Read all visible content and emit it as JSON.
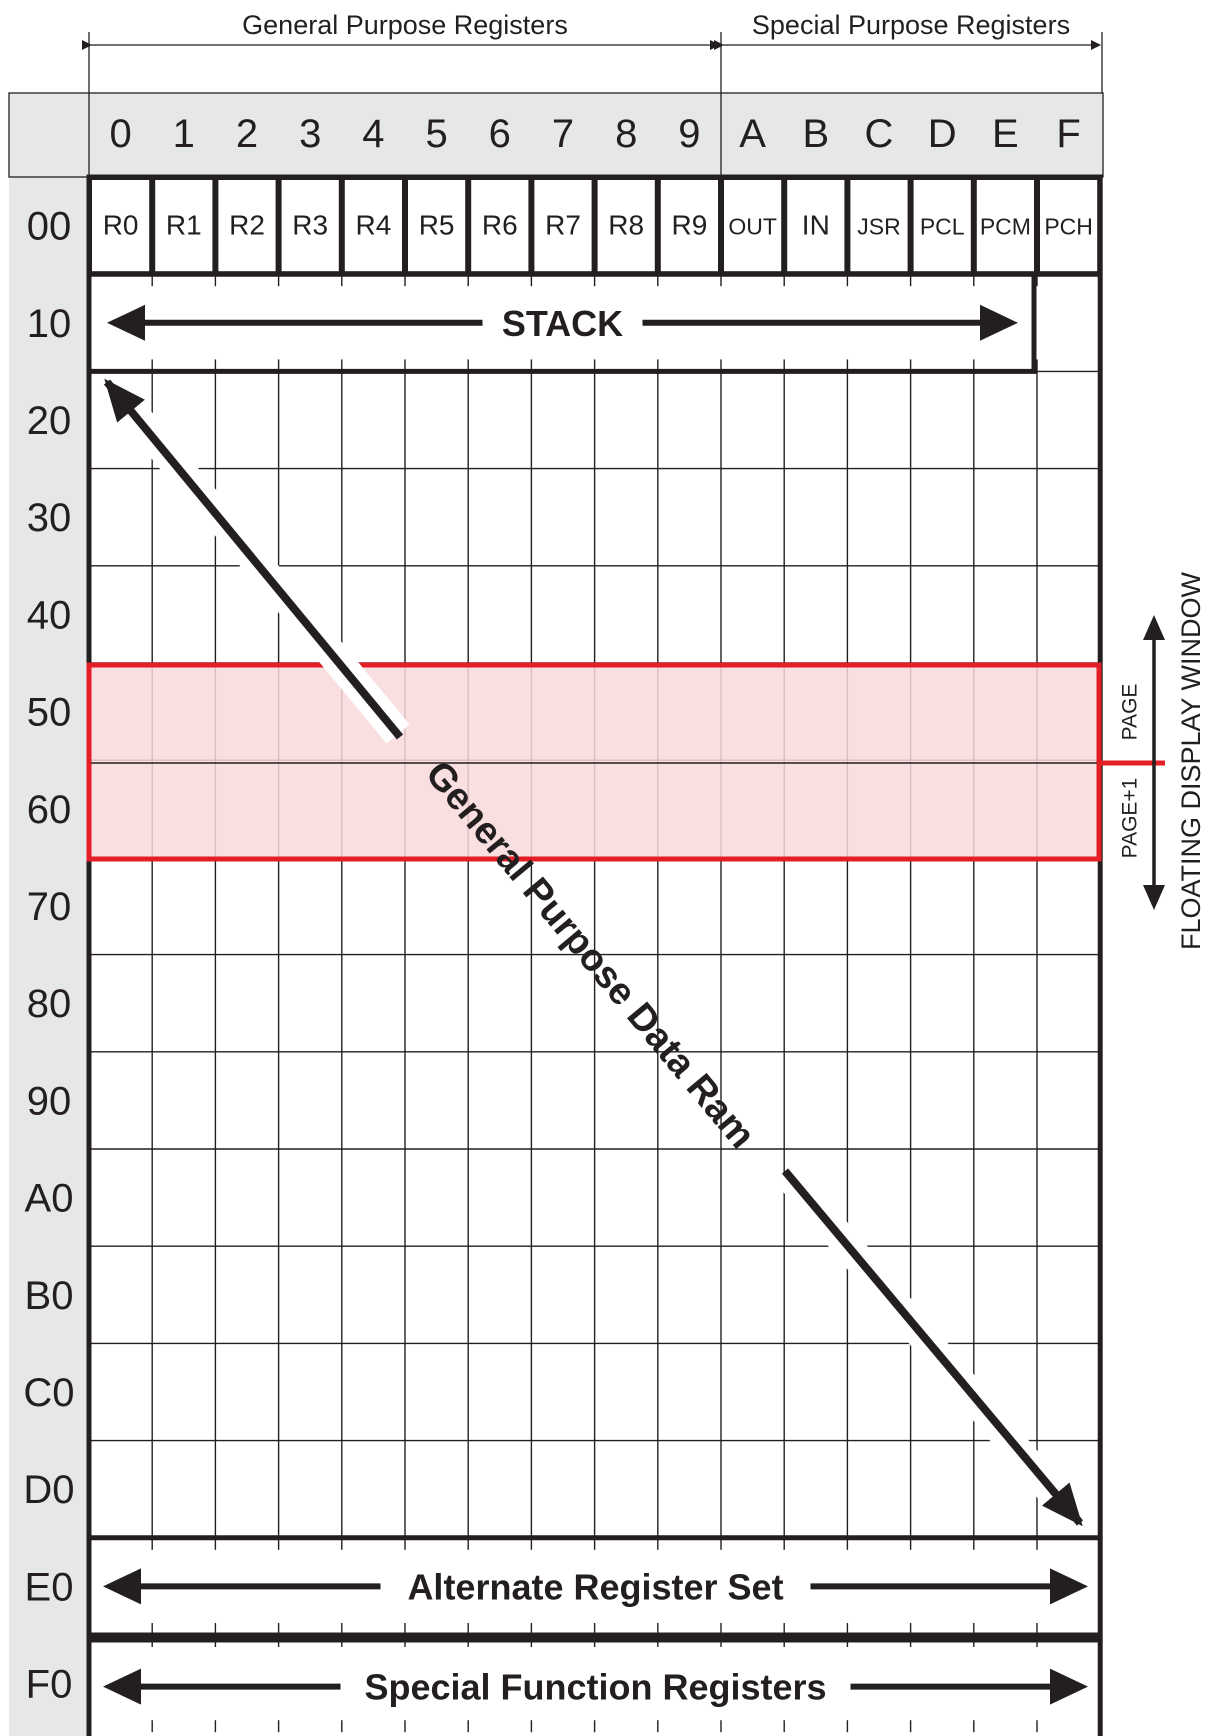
{
  "header": {
    "general_label": "General Purpose Registers",
    "special_label": "Special Purpose Registers"
  },
  "columns": [
    "0",
    "1",
    "2",
    "3",
    "4",
    "5",
    "6",
    "7",
    "8",
    "9",
    "A",
    "B",
    "C",
    "D",
    "E",
    "F"
  ],
  "rows": [
    "00",
    "10",
    "20",
    "30",
    "40",
    "50",
    "60",
    "70",
    "80",
    "90",
    "A0",
    "B0",
    "C0",
    "D0",
    "E0",
    "F0"
  ],
  "registers": [
    "R0",
    "R1",
    "R2",
    "R3",
    "R4",
    "R5",
    "R6",
    "R7",
    "R8",
    "R9",
    "OUT",
    "IN",
    "JSR",
    "PCL",
    "PCM",
    "PCH"
  ],
  "regions": {
    "stack": "STACK",
    "general_ram": "General Purpose Data Ram",
    "alternate": "Alternate Register Set",
    "special_function": "Special Function Registers"
  },
  "display_window": {
    "title": "FLOATING DISPLAY WINDOW",
    "page": "PAGE",
    "page_plus_one": "PAGE+1"
  },
  "colors": {
    "line": "#231f20",
    "window_stroke": "#e31e24",
    "window_fill": "#f9d9dc",
    "header_bg": "#e6e7e8"
  }
}
